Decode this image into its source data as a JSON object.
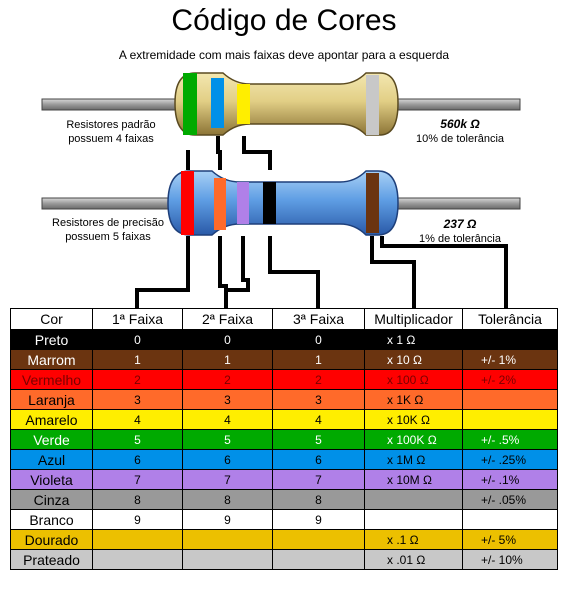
{
  "title": "Código de Cores",
  "subtitle": "A extremidade com mais faixas deve apontar para a esquerda",
  "resistor_top": {
    "label_line1": "Resistores padrão",
    "label_line2": "possuem 4 faixas",
    "value": "560k Ω",
    "tolerance": "10% de tolerância",
    "bands": [
      "#00aa00",
      "#0090e8",
      "#ffee00",
      "#c8c8c8"
    ]
  },
  "resistor_bottom": {
    "label_line1": "Resistores de precisão",
    "label_line2": "possuem 5 faixas",
    "value": "237 Ω",
    "tolerance": "1% de tolerância",
    "bands": [
      "#ff0000",
      "#ff6a2a",
      "#b080e8",
      "#000000",
      "#6b3410"
    ]
  },
  "table": {
    "headers": [
      "Cor",
      "1ª Faixa",
      "2ª Faixa",
      "3ª Faixa",
      "Multiplicador",
      "Tolerância"
    ],
    "rows": [
      {
        "name": "Preto",
        "bg": "#000000",
        "fg": "#ffffff",
        "d1": "0",
        "d2": "0",
        "d3": "0",
        "mult": "x 1 Ω",
        "tol": ""
      },
      {
        "name": "Marrom",
        "bg": "#6b3410",
        "fg": "#ffffff",
        "d1": "1",
        "d2": "1",
        "d3": "1",
        "mult": "x 10 Ω",
        "tol": "+/-  1%"
      },
      {
        "name": "Vermelho",
        "bg": "#ff0000",
        "fg": "#7a0000",
        "d1": "2",
        "d2": "2",
        "d3": "2",
        "mult": "x 100 Ω",
        "tol": "+/-  2%"
      },
      {
        "name": "Laranja",
        "bg": "#ff6a2a",
        "fg": "#000000",
        "d1": "3",
        "d2": "3",
        "d3": "3",
        "mult": "x 1K Ω",
        "tol": ""
      },
      {
        "name": "Amarelo",
        "bg": "#ffee00",
        "fg": "#000000",
        "d1": "4",
        "d2": "4",
        "d3": "4",
        "mult": "x 10K Ω",
        "tol": ""
      },
      {
        "name": "Verde",
        "bg": "#00aa00",
        "fg": "#ffffff",
        "d1": "5",
        "d2": "5",
        "d3": "5",
        "mult": "x 100K Ω",
        "tol": "+/-  .5%"
      },
      {
        "name": "Azul",
        "bg": "#0090e8",
        "fg": "#000000",
        "d1": "6",
        "d2": "6",
        "d3": "6",
        "mult": "x 1M Ω",
        "tol": "+/-  .25%"
      },
      {
        "name": "Violeta",
        "bg": "#b080e8",
        "fg": "#000000",
        "d1": "7",
        "d2": "7",
        "d3": "7",
        "mult": "x 10M Ω",
        "tol": "+/-  .1%"
      },
      {
        "name": "Cinza",
        "bg": "#999999",
        "fg": "#000000",
        "d1": "8",
        "d2": "8",
        "d3": "8",
        "mult": "",
        "tol": "+/-  .05%"
      },
      {
        "name": "Branco",
        "bg": "#ffffff",
        "fg": "#000000",
        "d1": "9",
        "d2": "9",
        "d3": "9",
        "mult": "",
        "tol": ""
      },
      {
        "name": "Dourado",
        "bg": "#ecc000",
        "fg": "#000000",
        "d1": "",
        "d2": "",
        "d3": "",
        "mult": "x .1 Ω",
        "tol": "+/-  5%"
      },
      {
        "name": "Prateado",
        "bg": "#c8c8c8",
        "fg": "#000000",
        "d1": "",
        "d2": "",
        "d3": "",
        "mult": "x .01 Ω",
        "tol": "+/-  10%"
      }
    ]
  }
}
